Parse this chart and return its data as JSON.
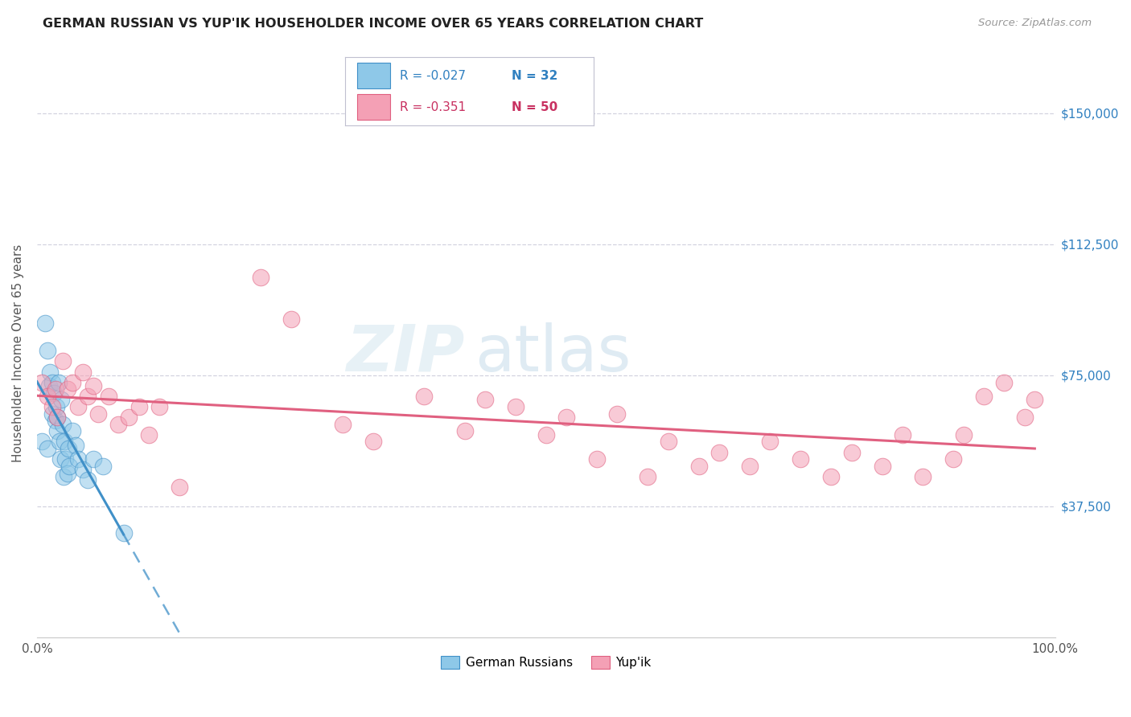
{
  "title": "GERMAN RUSSIAN VS YUP'IK HOUSEHOLDER INCOME OVER 65 YEARS CORRELATION CHART",
  "source": "Source: ZipAtlas.com",
  "ylabel": "Householder Income Over 65 years",
  "xlim": [
    0,
    100
  ],
  "ylim": [
    0,
    162500
  ],
  "yticks": [
    0,
    37500,
    75000,
    112500,
    150000
  ],
  "ytick_labels": [
    "",
    "$37,500",
    "$75,000",
    "$112,500",
    "$150,000"
  ],
  "legend_r1": "-0.027",
  "legend_n1": "32",
  "legend_r2": "-0.351",
  "legend_n2": "50",
  "label1": "German Russians",
  "label2": "Yup'ik",
  "color_blue": "#8ec8e8",
  "color_pink": "#f4a0b5",
  "color_blue_line": "#4090c8",
  "color_pink_line": "#e06080",
  "color_text_blue": "#3080c0",
  "color_text_pink": "#c83060",
  "watermark_zip": "ZIP",
  "watermark_atlas": "atlas",
  "gr_x": [
    0.5,
    0.8,
    1.0,
    1.0,
    1.2,
    1.3,
    1.5,
    1.5,
    1.7,
    1.8,
    1.9,
    2.0,
    2.0,
    2.1,
    2.2,
    2.3,
    2.4,
    2.5,
    2.6,
    2.7,
    2.8,
    3.0,
    3.1,
    3.2,
    3.5,
    3.8,
    4.0,
    4.5,
    5.0,
    5.5,
    6.5,
    8.5
  ],
  "gr_y": [
    56000,
    90000,
    54000,
    82000,
    72000,
    76000,
    64000,
    73000,
    70000,
    62000,
    66000,
    63000,
    59000,
    73000,
    56000,
    51000,
    68000,
    61000,
    46000,
    56000,
    51000,
    47000,
    54000,
    49000,
    59000,
    55000,
    51000,
    48000,
    45000,
    51000,
    49000,
    30000
  ],
  "yp_x": [
    0.5,
    1.0,
    1.5,
    1.8,
    2.0,
    2.5,
    3.0,
    3.5,
    4.0,
    4.5,
    5.0,
    5.5,
    6.0,
    7.0,
    8.0,
    9.0,
    10.0,
    11.0,
    12.0,
    14.0,
    22.0,
    25.0,
    30.0,
    33.0,
    38.0,
    42.0,
    44.0,
    47.0,
    50.0,
    52.0,
    55.0,
    57.0,
    60.0,
    62.0,
    65.0,
    67.0,
    70.0,
    72.0,
    75.0,
    78.0,
    80.0,
    83.0,
    85.0,
    87.0,
    90.0,
    91.0,
    93.0,
    95.0,
    97.0,
    98.0
  ],
  "yp_y": [
    73000,
    69000,
    66000,
    71000,
    63000,
    79000,
    71000,
    73000,
    66000,
    76000,
    69000,
    72000,
    64000,
    69000,
    61000,
    63000,
    66000,
    58000,
    66000,
    43000,
    103000,
    91000,
    61000,
    56000,
    69000,
    59000,
    68000,
    66000,
    58000,
    63000,
    51000,
    64000,
    46000,
    56000,
    49000,
    53000,
    49000,
    56000,
    51000,
    46000,
    53000,
    49000,
    58000,
    46000,
    51000,
    58000,
    69000,
    73000,
    63000,
    68000
  ]
}
